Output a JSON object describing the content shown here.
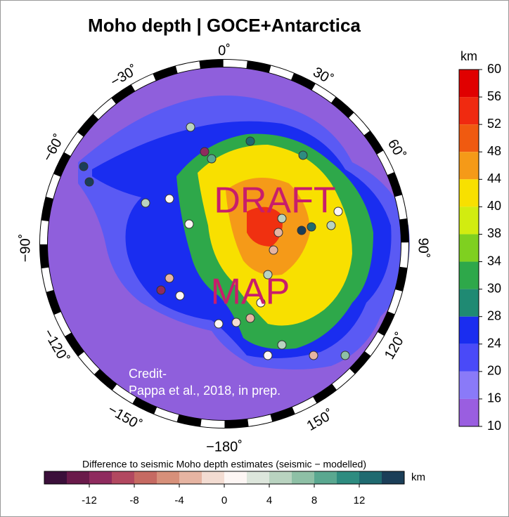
{
  "title": "Moho depth | GOCE+Antarctica",
  "longitude_labels": [
    "0˚",
    "30˚",
    "60˚",
    "90˚",
    "120˚",
    "150˚",
    "−180˚",
    "−150˚",
    "−120˚",
    "−90˚",
    "−60˚",
    "−30˚"
  ],
  "watermark": [
    "DRAFT",
    "MAP"
  ],
  "credit": [
    "Credit-",
    "Pappa et al., 2018, in prep."
  ],
  "depth_scale": {
    "unit": "km",
    "ticks": [
      60,
      56,
      52,
      48,
      44,
      40,
      38,
      34,
      30,
      28,
      24,
      20,
      16,
      10
    ],
    "colors": [
      "#e00000",
      "#f02a10",
      "#f05a10",
      "#f59a18",
      "#f8e000",
      "#d2ec10",
      "#7fd020",
      "#2ea84a",
      "#1f8a73",
      "#1a2df0",
      "#4a4af8",
      "#8a7af8",
      "#9a5ee0"
    ]
  },
  "difference_scale": {
    "label": "Difference to seismic Moho depth estimates (seismic − modelled)",
    "unit": "km",
    "range": [
      -16,
      16
    ],
    "ticks": [
      -12,
      -8,
      -4,
      0,
      4,
      8,
      12
    ],
    "colors": [
      "#3b0f3a",
      "#6a1a4a",
      "#8f2b5e",
      "#b24860",
      "#c66a62",
      "#d7907a",
      "#e6b4a2",
      "#f3dcd2",
      "#fdf6f4",
      "#dde6dc",
      "#b9d3c0",
      "#8ec0a6",
      "#5aa890",
      "#2e8c80",
      "#1f6a70",
      "#1b3e58"
    ]
  }
}
